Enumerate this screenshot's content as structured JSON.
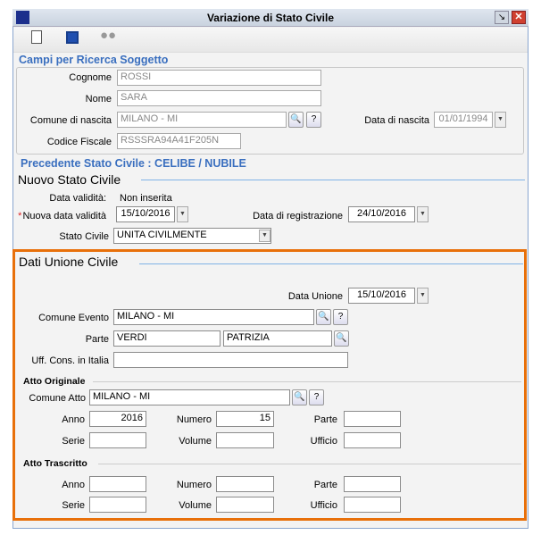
{
  "window": {
    "title": "Variazione di Stato Civile"
  },
  "toolbar": {
    "icons": [
      "new-document-icon",
      "save-icon",
      "binoculars-icon"
    ]
  },
  "ricerca": {
    "title": "Campi per Ricerca Soggetto",
    "cognome_label": "Cognome",
    "cognome": "ROSSI",
    "nome_label": "Nome",
    "nome": "SARA",
    "comune_label": "Comune di nascita",
    "comune": "MILANO - MI",
    "data_label": "Data di nascita",
    "data": "01/01/1994",
    "cf_label": "Codice Fiscale",
    "cf": "RSSSRA94A41F205N"
  },
  "precedente": "Precedente Stato Civile : CELIBE / NUBILE",
  "nuovo": {
    "title": "Nuovo Stato Civile",
    "validita_label": "Data validità:",
    "validita": "Non inserita",
    "nuova_label": "Nuova data validità",
    "required": "*",
    "nuova": "15/10/2016",
    "reg_label": "Data di registrazione",
    "reg": "24/10/2016",
    "stato_label": "Stato Civile",
    "stato": "UNITA CIVILMENTE"
  },
  "unione": {
    "title": "Dati Unione Civile",
    "data_label": "Data Unione",
    "data": "15/10/2016",
    "comune_label": "Comune Evento",
    "comune": "MILANO - MI",
    "parte_label": "Parte",
    "parte1": "VERDI",
    "parte2": "PATRIZIA",
    "uff_label": "Uff. Cons. in Italia",
    "uff": ""
  },
  "originale": {
    "title": "Atto Originale",
    "comune_label": "Comune Atto",
    "comune": "MILANO - MI",
    "anno_label": "Anno",
    "anno": "2016",
    "numero_label": "Numero",
    "numero": "15",
    "parte_label": "Parte",
    "parte": "",
    "serie_label": "Serie",
    "serie": "",
    "volume_label": "Volume",
    "volume": "",
    "ufficio_label": "Ufficio",
    "ufficio": ""
  },
  "trascritto": {
    "title": "Atto Trascritto",
    "anno_label": "Anno",
    "anno": "",
    "numero_label": "Numero",
    "numero": "",
    "parte_label": "Parte",
    "parte": "",
    "serie_label": "Serie",
    "serie": "",
    "volume_label": "Volume",
    "volume": "",
    "ufficio_label": "Ufficio",
    "ufficio": ""
  },
  "colors": {
    "accent": "#3a6fbf",
    "highlight": "#e8700a"
  }
}
